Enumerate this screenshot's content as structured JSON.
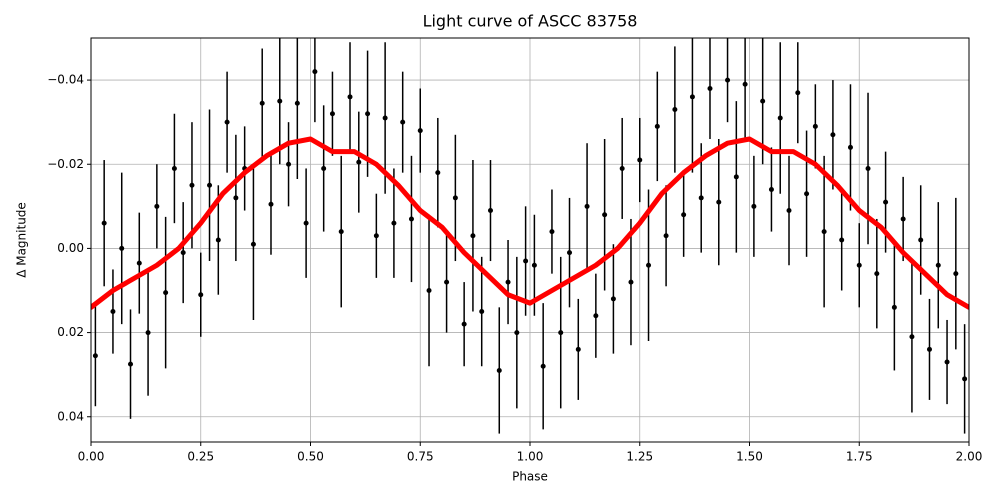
{
  "chart_data": {
    "type": "scatter",
    "title": "Light curve of ASCC 83758",
    "x_label": "Phase",
    "y_label": "Δ Magnitude",
    "xlim": [
      0,
      2
    ],
    "ylim": [
      -0.05,
      0.046
    ],
    "y_inverted": true,
    "grid": true,
    "xticks": [
      {
        "value": 0,
        "label": "0.00"
      },
      0.25,
      {
        "value": 0.5,
        "label": "0.50"
      },
      0.75,
      {
        "value": 1,
        "label": "1.00"
      },
      1.25,
      {
        "value": 1.5,
        "label": "1.50"
      },
      1.75,
      {
        "value": 2,
        "label": "2.00"
      }
    ],
    "yticks": [
      {
        "value": -0.04,
        "label": "−0.04"
      },
      {
        "value": -0.02,
        "label": "−0.02"
      },
      {
        "value": 0,
        "label": "0.00"
      },
      0.02,
      0.04
    ],
    "series": [
      {
        "type": "errorbar",
        "color": "#000000",
        "x": [
          0.01,
          0.03,
          0.05,
          0.07,
          0.09,
          0.11,
          0.13,
          0.15,
          0.17,
          0.19,
          0.21,
          0.23,
          0.25,
          0.27,
          0.29,
          0.31,
          0.33,
          0.35,
          0.37,
          0.39,
          0.41,
          0.43,
          0.45,
          0.47,
          0.49,
          0.51,
          0.53,
          0.55,
          0.57,
          0.59,
          0.61,
          0.63,
          0.65,
          0.67,
          0.69,
          0.71,
          0.73,
          0.75,
          0.77,
          0.79,
          0.81,
          0.83,
          0.85,
          0.87,
          0.89,
          0.91,
          0.93,
          0.95,
          0.97,
          0.99,
          1.01,
          1.03,
          1.05,
          1.07,
          1.09,
          1.11,
          1.13,
          1.15,
          1.17,
          1.19,
          1.21,
          1.23,
          1.25,
          1.27,
          1.29,
          1.31,
          1.33,
          1.35,
          1.37,
          1.39,
          1.41,
          1.43,
          1.45,
          1.47,
          1.49,
          1.51,
          1.53,
          1.55,
          1.57,
          1.59,
          1.61,
          1.63,
          1.65,
          1.67,
          1.69,
          1.71,
          1.73,
          1.75,
          1.77,
          1.79,
          1.81,
          1.83,
          1.85,
          1.87,
          1.89,
          1.91,
          1.93,
          1.95,
          1.97,
          1.99
        ],
        "values": [
          0.0255,
          -0.006,
          0.015,
          0.0,
          0.0275,
          0.0035,
          0.02,
          -0.01,
          0.0105,
          -0.019,
          0.001,
          -0.015,
          0.011,
          -0.015,
          -0.002,
          -0.03,
          -0.012,
          -0.019,
          -0.001,
          -0.0345,
          -0.0105,
          -0.035,
          -0.02,
          -0.0345,
          -0.006,
          -0.042,
          -0.019,
          -0.032,
          -0.004,
          -0.036,
          -0.0205,
          -0.032,
          -0.003,
          -0.031,
          -0.006,
          -0.03,
          -0.007,
          -0.028,
          0.01,
          -0.018,
          0.008,
          -0.012,
          0.018,
          -0.003,
          0.015,
          -0.009,
          0.029,
          0.008,
          0.02,
          0.003,
          0.004,
          0.028,
          -0.004,
          0.02,
          0.001,
          0.024,
          -0.01,
          0.016,
          -0.008,
          0.012,
          -0.019,
          0.008,
          -0.021,
          0.004,
          -0.029,
          -0.003,
          -0.033,
          -0.008,
          -0.036,
          -0.012,
          -0.038,
          -0.011,
          -0.04,
          -0.017,
          -0.039,
          -0.01,
          -0.035,
          -0.014,
          -0.031,
          -0.009,
          -0.037,
          -0.013,
          -0.029,
          -0.004,
          -0.027,
          -0.002,
          -0.024,
          0.004,
          -0.019,
          0.006,
          -0.011,
          0.014,
          -0.007,
          0.021,
          -0.002,
          0.024,
          0.004,
          0.027,
          0.006,
          0.031
        ],
        "yerr": [
          0.012,
          0.015,
          0.01,
          0.018,
          0.013,
          0.012,
          0.015,
          0.01,
          0.018,
          0.013,
          0.012,
          0.015,
          0.01,
          0.018,
          0.013,
          0.012,
          0.015,
          0.01,
          0.018,
          0.013,
          0.012,
          0.015,
          0.01,
          0.018,
          0.013,
          0.012,
          0.015,
          0.01,
          0.018,
          0.013,
          0.012,
          0.015,
          0.01,
          0.018,
          0.013,
          0.012,
          0.015,
          0.01,
          0.018,
          0.013,
          0.012,
          0.015,
          0.01,
          0.018,
          0.013,
          0.012,
          0.015,
          0.01,
          0.018,
          0.013,
          0.012,
          0.015,
          0.01,
          0.018,
          0.013,
          0.012,
          0.015,
          0.01,
          0.018,
          0.013,
          0.012,
          0.015,
          0.01,
          0.018,
          0.013,
          0.012,
          0.015,
          0.01,
          0.018,
          0.013,
          0.012,
          0.015,
          0.01,
          0.018,
          0.013,
          0.012,
          0.015,
          0.01,
          0.018,
          0.013,
          0.012,
          0.015,
          0.01,
          0.018,
          0.013,
          0.012,
          0.015,
          0.01,
          0.018,
          0.013,
          0.012,
          0.015,
          0.01,
          0.018,
          0.013,
          0.012,
          0.015,
          0.01,
          0.018,
          0.013
        ]
      },
      {
        "type": "line",
        "color": "#ff0000",
        "x": [
          0,
          0.05,
          0.1,
          0.15,
          0.2,
          0.25,
          0.3,
          0.35,
          0.4,
          0.45,
          0.5,
          0.55,
          0.6,
          0.65,
          0.7,
          0.75,
          0.8,
          0.85,
          0.9,
          0.95,
          1,
          1.05,
          1.1,
          1.15,
          1.2,
          1.25,
          1.3,
          1.35,
          1.4,
          1.45,
          1.5,
          1.55,
          1.6,
          1.65,
          1.7,
          1.75,
          1.8,
          1.85,
          1.9,
          1.95,
          2
        ],
        "values": [
          0.014,
          0.01,
          0.007,
          0.004,
          0.0,
          -0.006,
          -0.013,
          -0.018,
          -0.022,
          -0.025,
          -0.026,
          -0.023,
          -0.023,
          -0.02,
          -0.015,
          -0.009,
          -0.005,
          0.001,
          0.006,
          0.011,
          0.013,
          0.01,
          0.007,
          0.004,
          0.0,
          -0.006,
          -0.013,
          -0.018,
          -0.022,
          -0.025,
          -0.026,
          -0.023,
          -0.023,
          -0.02,
          -0.015,
          -0.009,
          -0.005,
          0.001,
          0.006,
          0.011,
          0.014
        ]
      }
    ]
  }
}
